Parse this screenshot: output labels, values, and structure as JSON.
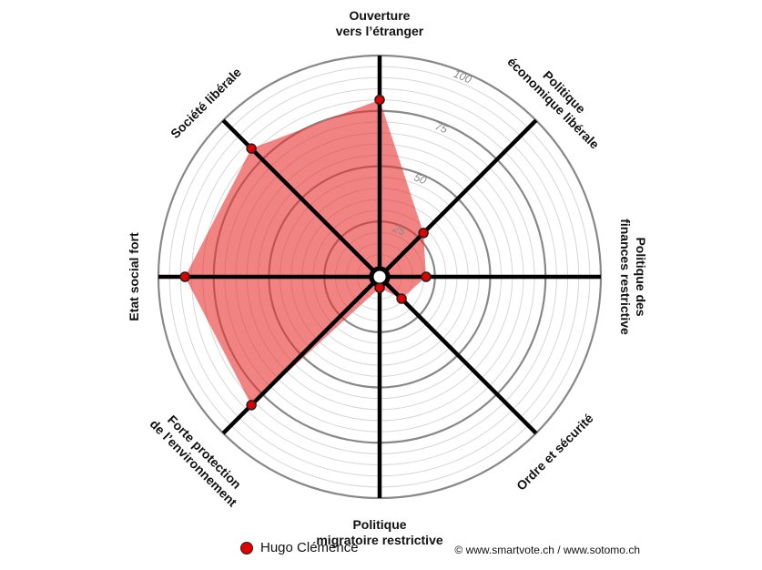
{
  "chart_data": {
    "type": "radar",
    "range": [
      0,
      100
    ],
    "ticks": [
      25,
      50,
      75,
      100
    ],
    "axes": [
      "Ouverture vers l’étranger",
      "Politique économique libérale",
      "Politique des finances restrictive",
      "Ordre et sécurité",
      "Politique migratoire restrictive",
      "Forte protection de l’environnement",
      "Etat social fort",
      "Société libérale"
    ],
    "axis_label_lines": [
      [
        "Ouverture",
        "vers l’étranger"
      ],
      [
        "Politique",
        "économique libérale"
      ],
      [
        "Politique des",
        "finances restrictive"
      ],
      [
        "Ordre et sécurité"
      ],
      [
        "Politique",
        "migratoire restrictive"
      ],
      [
        "Forte protection",
        "de l’environnement"
      ],
      [
        "Etat social fort"
      ],
      [
        "Société libérale"
      ]
    ],
    "series": [
      {
        "name": "Hugo Clémence",
        "values": [
          80,
          28,
          21,
          14,
          5,
          82,
          88,
          82
        ]
      }
    ],
    "colors": {
      "fill": "#e83030",
      "point": "#e00000",
      "axis": "#000000",
      "grid": "#888888"
    }
  },
  "legend": {
    "name": "Hugo Clémence"
  },
  "credit": "© www.smartvote.ch / www.sotomo.ch"
}
